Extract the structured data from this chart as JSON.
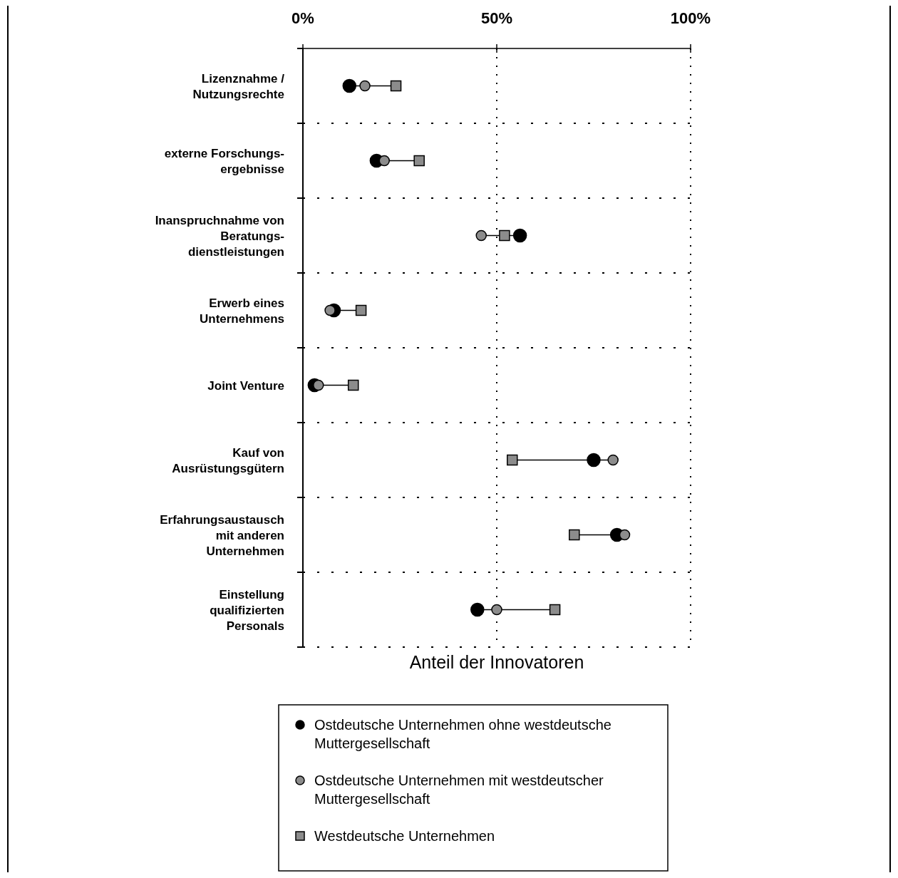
{
  "chart_data": {
    "type": "scatter",
    "orientation": "horizontal",
    "xlabel": "Anteil der Innovatoren",
    "categories": [
      "Lizenznahme /\nNutzungsrechte",
      "externe Forschungs-\nergebnisse",
      "Inanspruchnahme von\nBeratungs-\ndienstleistungen",
      "Erwerb eines\nUnternehmens",
      "Joint Venture",
      "Kauf von\nAusrüstungsgütern",
      "Erfahrungsaustausch\nmit anderen\nUnternehmen",
      "Einstellung\nqualifizierten\nPersonals"
    ],
    "series": [
      {
        "name": "Ostdeutsche Unternehmen ohne westdeutsche Muttergesellschaft",
        "color": "#000000",
        "marker": "circle",
        "values": [
          12,
          19,
          56,
          8,
          3,
          75,
          81,
          45
        ]
      },
      {
        "name": "Ostdeutsche Unternehmen mit westdeutscher Muttergesellschaft",
        "color": "#8c8c8c",
        "marker": "circle",
        "values": [
          16,
          21,
          46,
          7,
          4,
          80,
          83,
          50
        ]
      },
      {
        "name": "Westdeutsche Unternehmen",
        "color": "#8c8c8c",
        "marker": "square",
        "values": [
          24,
          30,
          52,
          15,
          13,
          54,
          70,
          65
        ]
      }
    ],
    "xlim": [
      0,
      100
    ],
    "xticks": [
      {
        "value": 0,
        "label": "0%"
      },
      {
        "value": 50,
        "label": "50%"
      },
      {
        "value": 100,
        "label": "100%"
      }
    ],
    "grid": true,
    "legend": "bottom"
  }
}
